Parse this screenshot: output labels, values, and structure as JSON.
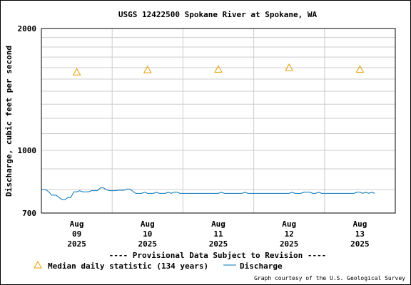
{
  "chart_data": {
    "type": "line",
    "title": "USGS 12422500 Spokane River at Spokane, WA",
    "xlabel": "",
    "ylabel": "Discharge, cubic feet per second",
    "y_scale": "log",
    "ylim": [
      700,
      2000
    ],
    "y_ticks": [
      "2000",
      "1000",
      "700"
    ],
    "x_ticks": [
      {
        "month": "Aug",
        "day": "09",
        "year": "2025"
      },
      {
        "month": "Aug",
        "day": "10",
        "year": "2025"
      },
      {
        "month": "Aug",
        "day": "11",
        "year": "2025"
      },
      {
        "month": "Aug",
        "day": "12",
        "year": "2025"
      },
      {
        "month": "Aug",
        "day": "13",
        "year": "2025"
      }
    ],
    "xlim": [
      "2025-08-08 12:00",
      "2025-08-13 12:00"
    ],
    "grid": true,
    "series": [
      {
        "name": "Discharge",
        "kind": "line",
        "color": "#0073b7",
        "points": [
          [
            "2025-08-08 12:00",
            800
          ],
          [
            "2025-08-08 13:30",
            800
          ],
          [
            "2025-08-08 14:30",
            790
          ],
          [
            "2025-08-08 15:30",
            775
          ],
          [
            "2025-08-08 17:00",
            775
          ],
          [
            "2025-08-08 18:00",
            765
          ],
          [
            "2025-08-08 19:00",
            755
          ],
          [
            "2025-08-08 20:00",
            755
          ],
          [
            "2025-08-08 21:00",
            765
          ],
          [
            "2025-08-08 22:00",
            765
          ],
          [
            "2025-08-08 23:00",
            790
          ],
          [
            "2025-08-09 00:00",
            790
          ],
          [
            "2025-08-09 01:00",
            795
          ],
          [
            "2025-08-09 02:00",
            790
          ],
          [
            "2025-08-09 04:00",
            790
          ],
          [
            "2025-08-09 05:00",
            795
          ],
          [
            "2025-08-09 07:00",
            795
          ],
          [
            "2025-08-09 08:00",
            808
          ],
          [
            "2025-08-09 09:00",
            808
          ],
          [
            "2025-08-09 10:00",
            800
          ],
          [
            "2025-08-09 11:00",
            795
          ],
          [
            "2025-08-09 13:00",
            795
          ],
          [
            "2025-08-09 14:00",
            797
          ],
          [
            "2025-08-09 16:00",
            797
          ],
          [
            "2025-08-09 17:00",
            802
          ],
          [
            "2025-08-09 18:00",
            802
          ],
          [
            "2025-08-09 19:00",
            792
          ],
          [
            "2025-08-09 20:00",
            783
          ],
          [
            "2025-08-09 22:00",
            783
          ],
          [
            "2025-08-09 23:00",
            788
          ],
          [
            "2025-08-10 00:00",
            783
          ],
          [
            "2025-08-10 02:00",
            783
          ],
          [
            "2025-08-10 03:00",
            788
          ],
          [
            "2025-08-10 04:00",
            783
          ],
          [
            "2025-08-10 06:00",
            783
          ],
          [
            "2025-08-10 07:00",
            788
          ],
          [
            "2025-08-10 08:00",
            783
          ],
          [
            "2025-08-10 09:00",
            788
          ],
          [
            "2025-08-10 10:00",
            788
          ],
          [
            "2025-08-10 11:00",
            783
          ],
          [
            "2025-08-11 00:00",
            783
          ],
          [
            "2025-08-11 01:00",
            788
          ],
          [
            "2025-08-11 02:00",
            783
          ],
          [
            "2025-08-11 08:00",
            783
          ],
          [
            "2025-08-11 09:00",
            788
          ],
          [
            "2025-08-11 10:00",
            783
          ],
          [
            "2025-08-12 00:00",
            783
          ],
          [
            "2025-08-12 01:00",
            788
          ],
          [
            "2025-08-12 02:00",
            783
          ],
          [
            "2025-08-12 04:00",
            783
          ],
          [
            "2025-08-12 05:00",
            788
          ],
          [
            "2025-08-12 07:00",
            788
          ],
          [
            "2025-08-12 08:00",
            783
          ],
          [
            "2025-08-12 09:00",
            783
          ],
          [
            "2025-08-12 10:00",
            788
          ],
          [
            "2025-08-12 11:00",
            783
          ],
          [
            "2025-08-12 22:00",
            783
          ],
          [
            "2025-08-12 23:00",
            788
          ],
          [
            "2025-08-13 00:00",
            788
          ],
          [
            "2025-08-13 01:00",
            783
          ],
          [
            "2025-08-13 02:00",
            788
          ],
          [
            "2025-08-13 03:00",
            783
          ],
          [
            "2025-08-13 04:00",
            788
          ],
          [
            "2025-08-13 05:00",
            783
          ]
        ]
      },
      {
        "name": "Median daily statistic (134 years)",
        "kind": "triangle",
        "color": "#e69c00",
        "points": [
          [
            "2025-08-09 00:00",
            1560
          ],
          [
            "2025-08-10 00:00",
            1580
          ],
          [
            "2025-08-11 00:00",
            1585
          ],
          [
            "2025-08-12 00:00",
            1600
          ],
          [
            "2025-08-13 00:00",
            1585
          ]
        ]
      }
    ],
    "legend": [
      {
        "label": "Median daily statistic (134 years)",
        "symbol": "triangle",
        "color": "#e69c00"
      },
      {
        "label": "Discharge",
        "symbol": "line",
        "color": "#0073b7"
      }
    ],
    "provisional_note": "---- Provisional Data Subject to Revision ----",
    "provisional_color": "#dd0000",
    "credit": "Graph courtesy of the U.S. Geological Survey"
  }
}
